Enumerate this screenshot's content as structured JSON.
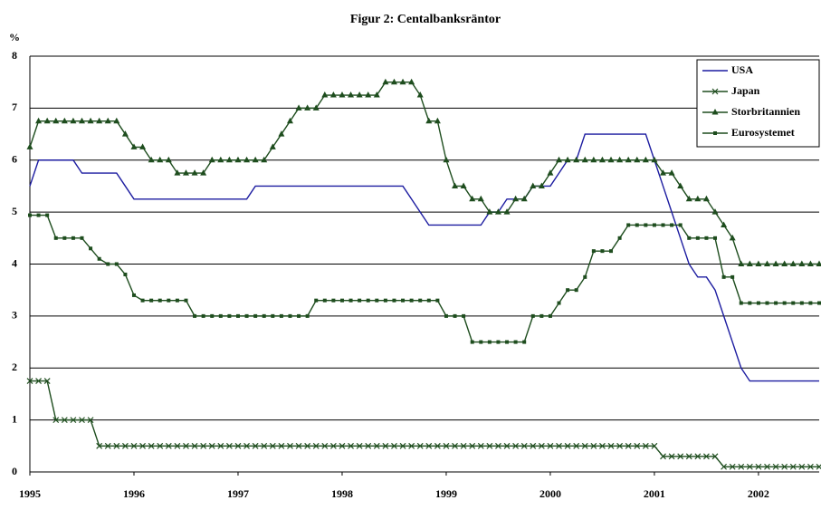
{
  "chart_data": {
    "type": "line",
    "title": "Figur 2: Centalbanksräntor",
    "y_label": "%",
    "categories": [
      "1995",
      null,
      null,
      null,
      null,
      null,
      null,
      null,
      null,
      null,
      null,
      null,
      "1996",
      null,
      null,
      null,
      null,
      null,
      null,
      null,
      null,
      null,
      null,
      null,
      "1997",
      null,
      null,
      null,
      null,
      null,
      null,
      null,
      null,
      null,
      null,
      null,
      "1998",
      null,
      null,
      null,
      null,
      null,
      null,
      null,
      null,
      null,
      null,
      null,
      "1999",
      null,
      null,
      null,
      null,
      null,
      null,
      null,
      null,
      null,
      null,
      null,
      "2000",
      null,
      null,
      null,
      null,
      null,
      null,
      null,
      null,
      null,
      null,
      null,
      "2001",
      null,
      null,
      null,
      null,
      null,
      null,
      null,
      null,
      null,
      null,
      null,
      "2002",
      null,
      null,
      null,
      null,
      null,
      null,
      null
    ],
    "series": [
      {
        "name": "USA",
        "color": "#1c1ca0",
        "marker": "none",
        "values": [
          5.5,
          6,
          6,
          6,
          6,
          6,
          5.75,
          5.75,
          5.75,
          5.75,
          5.75,
          5.5,
          5.25,
          5.25,
          5.25,
          5.25,
          5.25,
          5.25,
          5.25,
          5.25,
          5.25,
          5.25,
          5.25,
          5.25,
          5.25,
          5.25,
          5.5,
          5.5,
          5.5,
          5.5,
          5.5,
          5.5,
          5.5,
          5.5,
          5.5,
          5.5,
          5.5,
          5.5,
          5.5,
          5.5,
          5.5,
          5.5,
          5.5,
          5.5,
          5.25,
          5,
          4.75,
          4.75,
          4.75,
          4.75,
          4.75,
          4.75,
          4.75,
          5,
          5,
          5.25,
          5.25,
          5.25,
          5.5,
          5.5,
          5.5,
          5.75,
          6,
          6,
          6.5,
          6.5,
          6.5,
          6.5,
          6.5,
          6.5,
          6.5,
          6.5,
          6,
          5.5,
          5,
          4.5,
          4,
          3.75,
          3.75,
          3.5,
          3,
          2.5,
          2,
          1.75,
          1.75,
          1.75,
          1.75,
          1.75,
          1.75,
          1.75,
          1.75,
          1.75
        ]
      },
      {
        "name": "Japan",
        "color": "#1e4d1e",
        "marker": "x",
        "values": [
          1.75,
          1.75,
          1.75,
          1,
          1,
          1,
          1,
          1,
          0.5,
          0.5,
          0.5,
          0.5,
          0.5,
          0.5,
          0.5,
          0.5,
          0.5,
          0.5,
          0.5,
          0.5,
          0.5,
          0.5,
          0.5,
          0.5,
          0.5,
          0.5,
          0.5,
          0.5,
          0.5,
          0.5,
          0.5,
          0.5,
          0.5,
          0.5,
          0.5,
          0.5,
          0.5,
          0.5,
          0.5,
          0.5,
          0.5,
          0.5,
          0.5,
          0.5,
          0.5,
          0.5,
          0.5,
          0.5,
          0.5,
          0.5,
          0.5,
          0.5,
          0.5,
          0.5,
          0.5,
          0.5,
          0.5,
          0.5,
          0.5,
          0.5,
          0.5,
          0.5,
          0.5,
          0.5,
          0.5,
          0.5,
          0.5,
          0.5,
          0.5,
          0.5,
          0.5,
          0.5,
          0.5,
          0.3,
          0.3,
          0.3,
          0.3,
          0.3,
          0.3,
          0.3,
          0.1,
          0.1,
          0.1,
          0.1,
          0.1,
          0.1,
          0.1,
          0.1,
          0.1,
          0.1,
          0.1,
          0.1
        ]
      },
      {
        "name": "Storbritannien",
        "color": "#1e4d1e",
        "marker": "triangle",
        "values": [
          6.25,
          6.75,
          6.75,
          6.75,
          6.75,
          6.75,
          6.75,
          6.75,
          6.75,
          6.75,
          6.75,
          6.5,
          6.25,
          6.25,
          6,
          6,
          6,
          5.75,
          5.75,
          5.75,
          5.75,
          6,
          6,
          6,
          6,
          6,
          6,
          6,
          6.25,
          6.5,
          6.75,
          7,
          7,
          7,
          7.25,
          7.25,
          7.25,
          7.25,
          7.25,
          7.25,
          7.25,
          7.5,
          7.5,
          7.5,
          7.5,
          7.25,
          6.75,
          6.75,
          6,
          5.5,
          5.5,
          5.25,
          5.25,
          5,
          5,
          5,
          5.25,
          5.25,
          5.5,
          5.5,
          5.75,
          6,
          6,
          6,
          6,
          6,
          6,
          6,
          6,
          6,
          6,
          6,
          6,
          5.75,
          5.75,
          5.5,
          5.25,
          5.25,
          5.25,
          5,
          4.75,
          4.5,
          4,
          4,
          4,
          4,
          4,
          4,
          4,
          4,
          4,
          4
        ]
      },
      {
        "name": "Eurosystemet",
        "color": "#1e4d1e",
        "marker": "square",
        "values": [
          4.94,
          4.94,
          4.94,
          4.5,
          4.5,
          4.5,
          4.5,
          4.3,
          4.1,
          4,
          4,
          3.8,
          3.4,
          3.3,
          3.3,
          3.3,
          3.3,
          3.3,
          3.3,
          3,
          3,
          3,
          3,
          3,
          3,
          3,
          3,
          3,
          3,
          3,
          3,
          3,
          3,
          3.3,
          3.3,
          3.3,
          3.3,
          3.3,
          3.3,
          3.3,
          3.3,
          3.3,
          3.3,
          3.3,
          3.3,
          3.3,
          3.3,
          3.3,
          3,
          3,
          3,
          2.5,
          2.5,
          2.5,
          2.5,
          2.5,
          2.5,
          2.5,
          3,
          3,
          3,
          3.25,
          3.5,
          3.5,
          3.75,
          4.25,
          4.25,
          4.25,
          4.5,
          4.75,
          4.75,
          4.75,
          4.75,
          4.75,
          4.75,
          4.75,
          4.5,
          4.5,
          4.5,
          4.5,
          3.75,
          3.75,
          3.25,
          3.25,
          3.25,
          3.25,
          3.25,
          3.25,
          3.25,
          3.25,
          3.25,
          3.25
        ]
      }
    ],
    "ylim": [
      0,
      8
    ],
    "yticks": [
      0,
      1,
      2,
      3,
      4,
      5,
      6,
      7,
      8
    ],
    "grid": true,
    "legend": "top-right"
  }
}
